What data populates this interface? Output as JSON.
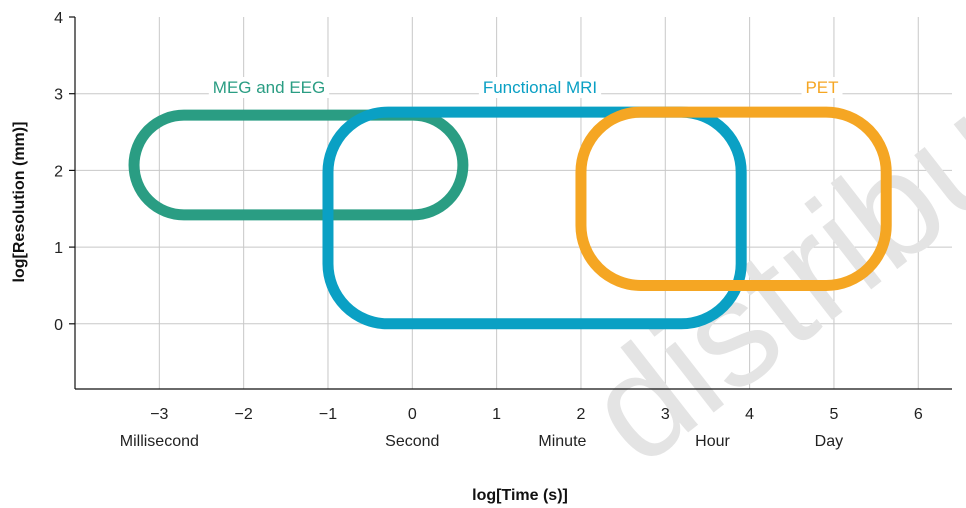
{
  "chart_data": {
    "type": "area",
    "xlabel": "log[Time (s)]",
    "ylabel": "log[Resolution (mm)]",
    "xlim": [
      -4,
      6.4
    ],
    "ylim": [
      -0.85,
      4
    ],
    "grid": true,
    "x_ticks": [
      -3,
      -2,
      -1,
      0,
      1,
      2,
      3,
      4,
      5,
      6
    ],
    "x_tick_labels": [
      "−3",
      "−2",
      "−1",
      "0",
      "1",
      "2",
      "3",
      "4",
      "5",
      "6"
    ],
    "y_ticks": [
      0,
      1,
      2,
      3,
      4
    ],
    "y_tick_labels": [
      "0",
      "1",
      "2",
      "3",
      "4"
    ],
    "time_units": [
      {
        "label": "Millisecond",
        "x": -3
      },
      {
        "label": "Second",
        "x": 0
      },
      {
        "label": "Minute",
        "x": 1.78
      },
      {
        "label": "Hour",
        "x": 3.56
      },
      {
        "label": "Day",
        "x": 4.94
      }
    ],
    "series": [
      {
        "name": "MEG and EEG",
        "color": "#2a9d83",
        "x_range": [
          -3.3,
          0.6
        ],
        "y_range": [
          1.42,
          2.72
        ]
      },
      {
        "name": "Functional MRI",
        "color": "#0aa0c4",
        "x_range": [
          -1.0,
          3.9
        ],
        "y_range": [
          0.0,
          2.76
        ]
      },
      {
        "name": "PET",
        "color": "#f5a623",
        "x_range": [
          2.0,
          5.62
        ],
        "y_range": [
          0.5,
          2.76
        ]
      }
    ]
  },
  "watermark": "distribute"
}
